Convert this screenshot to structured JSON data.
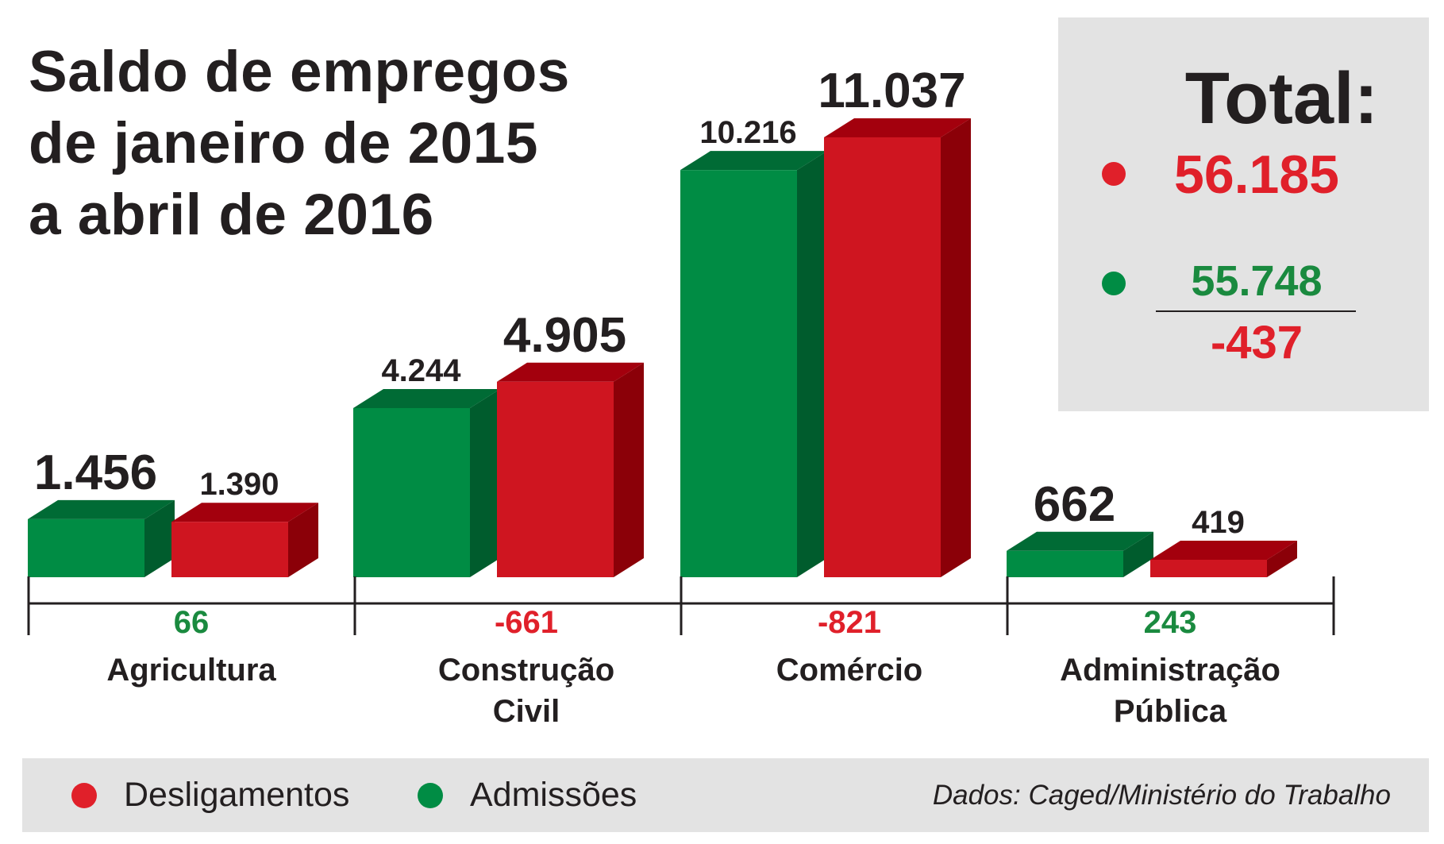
{
  "title_lines": [
    "Saldo de empregos",
    "de janeiro de 2015",
    "a abril de 2016"
  ],
  "colors": {
    "admissoes": "#008c44",
    "admissoes_top": "#006b35",
    "admissoes_side": "#005c2d",
    "desligamentos": "#cf1520",
    "desligamentos_top": "#a3000d",
    "desligamentos_side": "#8b0008",
    "positive_balance": "#1a8a3f",
    "negative_balance": "#e0202a",
    "text": "#231f20",
    "panel": "#e3e3e3"
  },
  "totals": {
    "label": "Total:",
    "desligamentos": "56.185",
    "admissoes": "55.748",
    "saldo": "-437"
  },
  "legend": {
    "desligamentos": "Desligamentos",
    "admissoes": "Admissões"
  },
  "source": "Dados: Caged/Ministério do Trabalho",
  "chart_data": {
    "type": "bar",
    "title": "Saldo de empregos de janeiro de 2015 a abril de 2016",
    "categories": [
      [
        "Agricultura"
      ],
      [
        "Construção",
        "Civil"
      ],
      [
        "Comércio"
      ],
      [
        "Administração",
        "Pública"
      ]
    ],
    "series": [
      {
        "name": "Admissões",
        "values": [
          1456,
          4244,
          10216,
          662
        ],
        "labels": [
          "1.456",
          "4.244",
          "10.216",
          "662"
        ]
      },
      {
        "name": "Desligamentos",
        "values": [
          1390,
          4905,
          11037,
          419
        ],
        "labels": [
          "1.390",
          "4.905",
          "11.037",
          "419"
        ]
      }
    ],
    "balance": {
      "values": [
        66,
        -661,
        -821,
        243
      ],
      "labels": [
        "66",
        "-661",
        "-821",
        "243"
      ]
    },
    "larger_label_series_index": [
      0,
      1,
      1,
      0
    ],
    "ylim": [
      0,
      12000
    ],
    "legend_position": "bottom",
    "grid": false
  }
}
